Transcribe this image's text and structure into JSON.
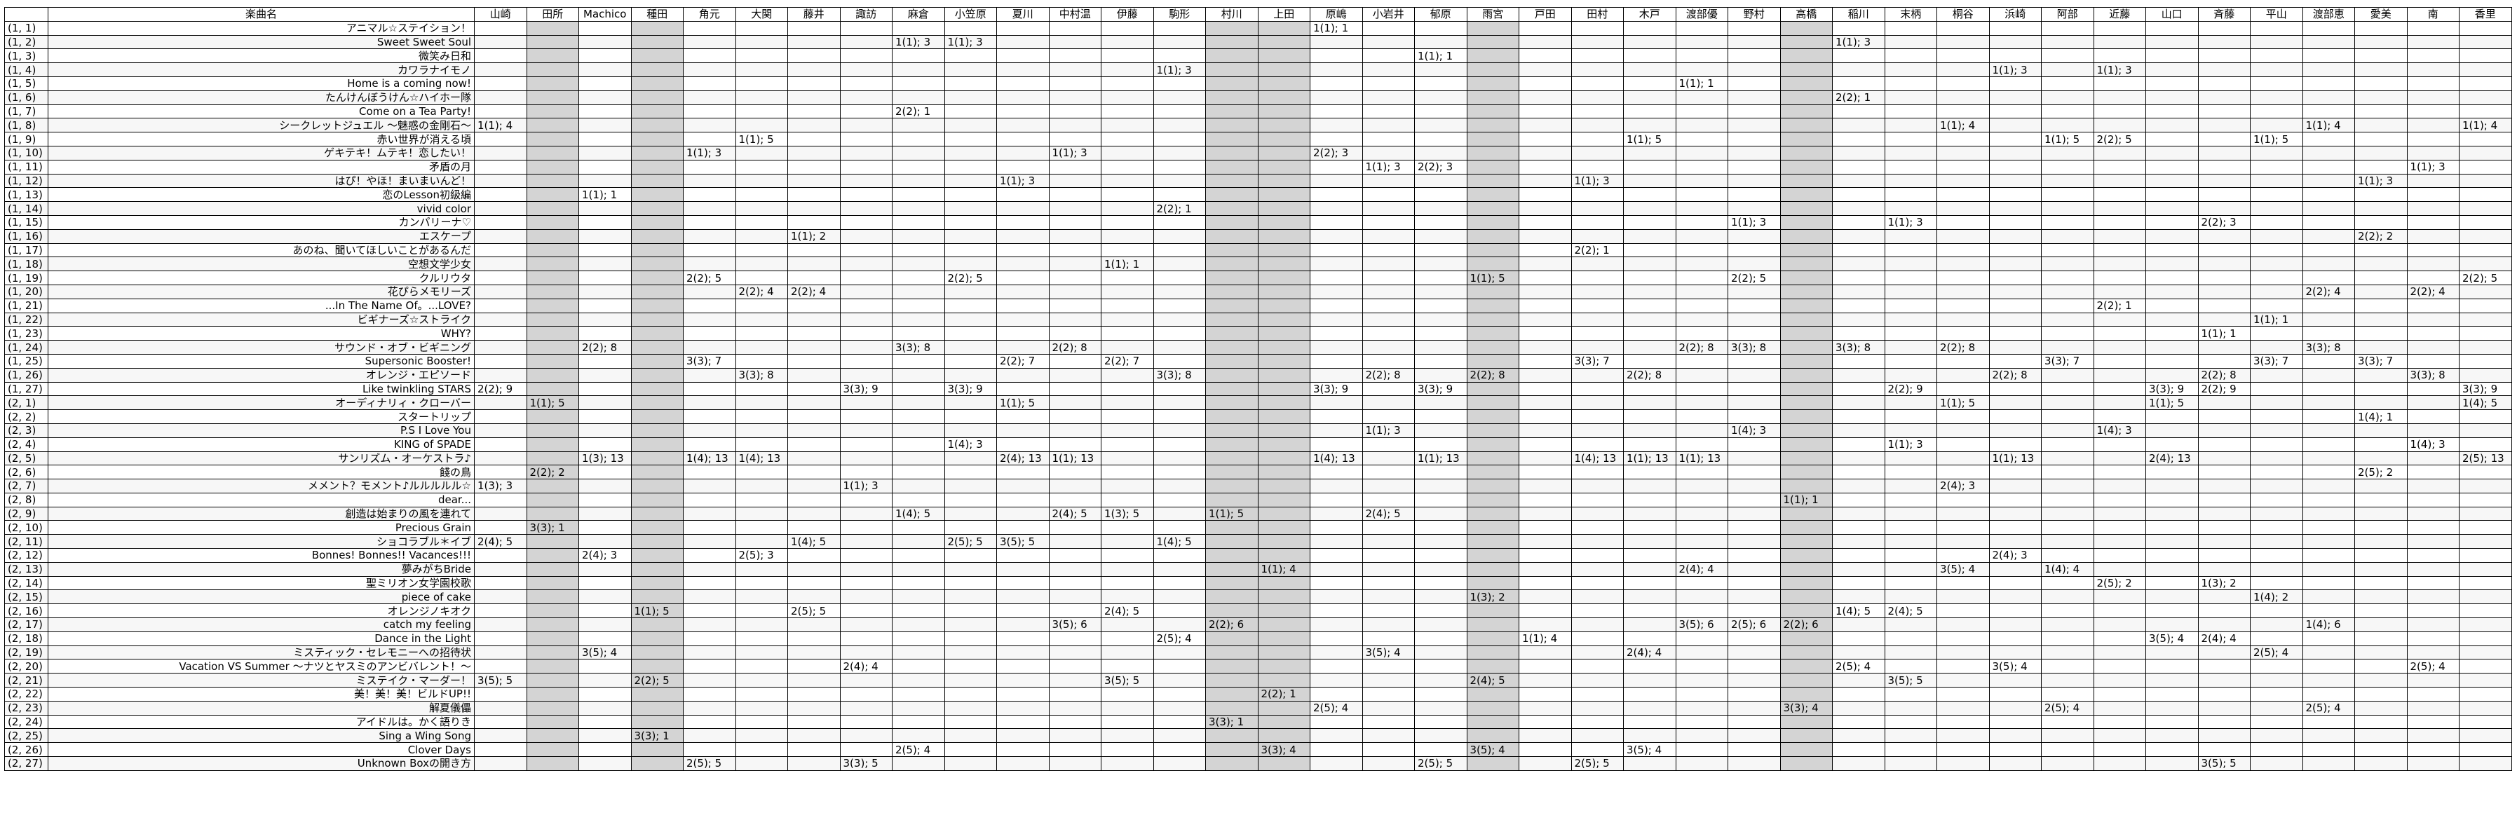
{
  "header": {
    "corner": "",
    "title_col": "楽曲名",
    "people": [
      "山崎",
      "田所",
      "Machico",
      "種田",
      "角元",
      "大関",
      "藤井",
      "諏訪",
      "麻倉",
      "小笠原",
      "夏川",
      "中村温",
      "伊藤",
      "駒形",
      "村川",
      "上田",
      "原嶋",
      "小岩井",
      "郁原",
      "雨宮",
      "戸田",
      "田村",
      "木戸",
      "渡部優",
      "野村",
      "高橋",
      "稲川",
      "末柄",
      "桐谷",
      "浜崎",
      "阿部",
      "近藤",
      "山口",
      "斉藤",
      "平山",
      "渡部恵",
      "愛美",
      "南",
      "香里"
    ]
  },
  "gray_columns": [
    1,
    3,
    14,
    15,
    19,
    25
  ],
  "rows": [
    {
      "idx": "(1, 1)",
      "title": "アニマル☆ステイション！",
      "cells": {
        "16": "1(1); 1"
      }
    },
    {
      "idx": "(1, 2)",
      "title": "Sweet Sweet Soul",
      "cells": {
        "8": "1(1); 3",
        "9": "1(1); 3",
        "26": "1(1); 3"
      }
    },
    {
      "idx": "(1, 3)",
      "title": "微笑み日和",
      "cells": {
        "18": "1(1); 1"
      }
    },
    {
      "idx": "(1, 4)",
      "title": "カワラナイモノ",
      "cells": {
        "13": "1(1); 3",
        "29": "1(1); 3",
        "31": "1(1); 3"
      }
    },
    {
      "idx": "(1, 5)",
      "title": "Home is a coming now!",
      "cells": {
        "23": "1(1); 1"
      }
    },
    {
      "idx": "(1, 6)",
      "title": "たんけんぼうけん☆ハイホー隊",
      "cells": {
        "26": "2(2); 1"
      }
    },
    {
      "idx": "(1, 7)",
      "title": "Come on a Tea Party!",
      "cells": {
        "8": "2(2); 1"
      }
    },
    {
      "idx": "(1, 8)",
      "title": "シークレットジュエル 〜魅惑の金剛石〜",
      "cells": {
        "0": "1(1); 4",
        "28": "1(1); 4",
        "35": "1(1); 4",
        "38": "1(1); 4"
      }
    },
    {
      "idx": "(1, 9)",
      "title": "赤い世界が消える頃",
      "cells": {
        "5": "1(1); 5",
        "22": "1(1); 5",
        "30": "1(1); 5",
        "31": "2(2); 5",
        "34": "1(1); 5"
      }
    },
    {
      "idx": "(1, 10)",
      "title": "ゲキテキ！ムテキ！恋したい！",
      "cells": {
        "4": "1(1); 3",
        "11": "1(1); 3",
        "16": "2(2); 3"
      }
    },
    {
      "idx": "(1, 11)",
      "title": "矛盾の月",
      "cells": {
        "17": "1(1); 3",
        "18": "2(2); 3",
        "37": "1(1); 3"
      }
    },
    {
      "idx": "(1, 12)",
      "title": "はぴ！やほ！まいまいんど！",
      "cells": {
        "10": "1(1); 3",
        "21": "1(1); 3",
        "36": "1(1); 3"
      }
    },
    {
      "idx": "(1, 13)",
      "title": "恋のLesson初級編",
      "cells": {
        "2": "1(1); 1"
      }
    },
    {
      "idx": "(1, 14)",
      "title": "vivid color",
      "cells": {
        "13": "2(2); 1"
      }
    },
    {
      "idx": "(1, 15)",
      "title": "カンパリーナ♡",
      "cells": {
        "24": "1(1); 3",
        "27": "1(1); 3",
        "33": "2(2); 3"
      }
    },
    {
      "idx": "(1, 16)",
      "title": "エスケープ",
      "cells": {
        "6": "1(1); 2",
        "36": "2(2); 2"
      }
    },
    {
      "idx": "(1, 17)",
      "title": "あのね、聞いてほしいことがあるんだ",
      "cells": {
        "21": "2(2); 1"
      }
    },
    {
      "idx": "(1, 18)",
      "title": "空想文学少女",
      "cells": {
        "12": "1(1); 1"
      }
    },
    {
      "idx": "(1, 19)",
      "title": "クルリウタ",
      "cells": {
        "4": "2(2); 5",
        "9": "2(2); 5",
        "19": "1(1); 5",
        "24": "2(2); 5",
        "38": "2(2); 5"
      }
    },
    {
      "idx": "(1, 20)",
      "title": "花ぴらメモリーズ",
      "cells": {
        "5": "2(2); 4",
        "6": "2(2); 4",
        "35": "2(2); 4",
        "37": "2(2); 4"
      }
    },
    {
      "idx": "(1, 21)",
      "title": "...In The Name Of。...LOVE?",
      "cells": {
        "31": "2(2); 1"
      }
    },
    {
      "idx": "(1, 22)",
      "title": "ビギナーズ☆ストライク",
      "cells": {
        "34": "1(1); 1"
      }
    },
    {
      "idx": "(1, 23)",
      "title": "WHY?",
      "cells": {
        "33": "1(1); 1"
      }
    },
    {
      "idx": "(1, 24)",
      "title": "サウンド・オブ・ビギニング",
      "cells": {
        "2": "2(2); 8",
        "8": "3(3); 8",
        "11": "2(2); 8",
        "23": "2(2); 8",
        "24": "3(3); 8",
        "26": "3(3); 8",
        "28": "2(2); 8",
        "35": "3(3); 8"
      }
    },
    {
      "idx": "(1, 25)",
      "title": "Supersonic Booster!",
      "cells": {
        "4": "3(3); 7",
        "10": "2(2); 7",
        "12": "2(2); 7",
        "21": "3(3); 7",
        "30": "3(3); 7",
        "34": "3(3); 7",
        "36": "3(3); 7"
      }
    },
    {
      "idx": "(1, 26)",
      "title": "オレンジ・エピソード",
      "cells": {
        "5": "3(3); 8",
        "13": "3(3); 8",
        "17": "2(2); 8",
        "19": "2(2); 8",
        "22": "2(2); 8",
        "29": "2(2); 8",
        "33": "2(2); 8",
        "37": "3(3); 8"
      }
    },
    {
      "idx": "(1, 27)",
      "title": "Like twinkling STARS",
      "cells": {
        "0": "2(2); 9",
        "7": "3(3); 9",
        "9": "3(3); 9",
        "16": "3(3); 9",
        "18": "3(3); 9",
        "27": "2(2); 9",
        "32": "3(3); 9",
        "33": "2(2); 9",
        "38": "3(3); 9"
      }
    },
    {
      "idx": "(2, 1)",
      "title": "オーディナリィ・クローバー",
      "cells": {
        "1": "1(1); 5",
        "10": "1(1); 5",
        "28": "1(1); 5",
        "32": "1(1); 5",
        "38": "1(4); 5"
      }
    },
    {
      "idx": "(2, 2)",
      "title": "スタートリップ",
      "cells": {
        "36": "1(4); 1"
      }
    },
    {
      "idx": "(2, 3)",
      "title": "P.S I Love You",
      "cells": {
        "17": "1(1); 3",
        "24": "1(4); 3",
        "31": "1(4); 3"
      }
    },
    {
      "idx": "(2, 4)",
      "title": "KING of SPADE",
      "cells": {
        "9": "1(4); 3",
        "27": "1(1); 3",
        "37": "1(4); 3"
      }
    },
    {
      "idx": "(2, 5)",
      "title": "サンリズム・オーケストラ♪",
      "cells": {
        "2": "1(3); 13",
        "4": "1(4); 13",
        "5": "1(4); 13",
        "10": "2(4); 13",
        "11": "1(1); 13",
        "16": "1(4); 13",
        "18": "1(1); 13",
        "21": "1(4); 13",
        "22": "1(1); 13",
        "23": "1(1); 13",
        "29": "1(1); 13",
        "32": "2(4); 13",
        "38": "2(5); 13"
      }
    },
    {
      "idx": "(2, 6)",
      "title": "餞の鳥",
      "cells": {
        "1": "2(2); 2",
        "36": "2(5); 2"
      }
    },
    {
      "idx": "(2, 7)",
      "title": "メメント？モメント♪ルルルルル☆",
      "cells": {
        "0": "1(3); 3",
        "7": "1(1); 3",
        "28": "2(4); 3"
      }
    },
    {
      "idx": "(2, 8)",
      "title": "dear...",
      "cells": {
        "25": "1(1); 1"
      }
    },
    {
      "idx": "(2, 9)",
      "title": "創造は始まりの風を連れて",
      "cells": {
        "8": "1(4); 5",
        "11": "2(4); 5",
        "12": "1(3); 5",
        "14": "1(1); 5",
        "17": "2(4); 5"
      }
    },
    {
      "idx": "(2, 10)",
      "title": "Precious Grain",
      "cells": {
        "1": "3(3); 1"
      }
    },
    {
      "idx": "(2, 11)",
      "title": "ショコラブル＊イブ",
      "cells": {
        "0": "2(4); 5",
        "6": "1(4); 5",
        "9": "2(5); 5",
        "10": "3(5); 5",
        "13": "1(4); 5"
      }
    },
    {
      "idx": "(2, 12)",
      "title": "Bonnes! Bonnes!! Vacances!!!",
      "cells": {
        "2": "2(4); 3",
        "5": "2(5); 3",
        "29": "2(4); 3"
      }
    },
    {
      "idx": "(2, 13)",
      "title": "夢みがちBride",
      "cells": {
        "15": "1(1); 4",
        "23": "2(4); 4",
        "28": "3(5); 4",
        "30": "1(4); 4"
      }
    },
    {
      "idx": "(2, 14)",
      "title": "聖ミリオン女学園校歌",
      "cells": {
        "31": "2(5); 2",
        "33": "1(3); 2"
      }
    },
    {
      "idx": "(2, 15)",
      "title": "piece of cake",
      "cells": {
        "19": "1(3); 2",
        "34": "1(4); 2"
      }
    },
    {
      "idx": "(2, 16)",
      "title": "オレンジノキオク",
      "cells": {
        "3": "1(1); 5",
        "6": "2(5); 5",
        "12": "2(4); 5",
        "26": "1(4); 5",
        "27": "2(4); 5"
      }
    },
    {
      "idx": "(2, 17)",
      "title": "catch my feeling",
      "cells": {
        "11": "3(5); 6",
        "14": "2(2); 6",
        "23": "3(5); 6",
        "24": "2(5); 6",
        "25": "2(2); 6",
        "35": "1(4); 6"
      }
    },
    {
      "idx": "(2, 18)",
      "title": "Dance in the Light",
      "cells": {
        "13": "2(5); 4",
        "20": "1(1); 4",
        "32": "3(5); 4",
        "33": "2(4); 4"
      }
    },
    {
      "idx": "(2, 19)",
      "title": "ミスティック・セレモニーへの招待状",
      "cells": {
        "2": "3(5); 4",
        "17": "3(5); 4",
        "22": "2(4); 4",
        "34": "2(5); 4"
      }
    },
    {
      "idx": "(2, 20)",
      "title": "Vacation VS Summer 〜ナツとヤスミのアンビバレント！〜",
      "cells": {
        "7": "2(4); 4",
        "26": "2(5); 4",
        "29": "3(5); 4",
        "37": "2(5); 4"
      }
    },
    {
      "idx": "(2, 21)",
      "title": "ミステイク・マーダー！",
      "cells": {
        "0": "3(5); 5",
        "3": "2(2); 5",
        "12": "3(5); 5",
        "19": "2(4); 5",
        "27": "3(5); 5"
      }
    },
    {
      "idx": "(2, 22)",
      "title": "美！美！美！ビルドUP!!",
      "cells": {
        "15": "2(2); 1"
      }
    },
    {
      "idx": "(2, 23)",
      "title": "解夏儀儡",
      "cells": {
        "16": "2(5); 4",
        "25": "3(3); 4",
        "30": "2(5); 4",
        "35": "2(5); 4"
      }
    },
    {
      "idx": "(2, 24)",
      "title": "アイドルは。かく語りき",
      "cells": {
        "14": "3(3); 1"
      }
    },
    {
      "idx": "(2, 25)",
      "title": "Sing a Wing Song",
      "cells": {
        "3": "3(3); 1"
      }
    },
    {
      "idx": "(2, 26)",
      "title": "Clover Days",
      "cells": {
        "8": "2(5); 4",
        "15": "3(3); 4",
        "19": "3(5); 4",
        "22": "3(5); 4"
      }
    },
    {
      "idx": "(2, 27)",
      "title": "Unknown Boxの開き方",
      "cells": {
        "4": "2(5); 5",
        "7": "3(3); 5",
        "18": "2(5); 5",
        "21": "2(5); 5",
        "33": "3(5); 5"
      }
    }
  ]
}
